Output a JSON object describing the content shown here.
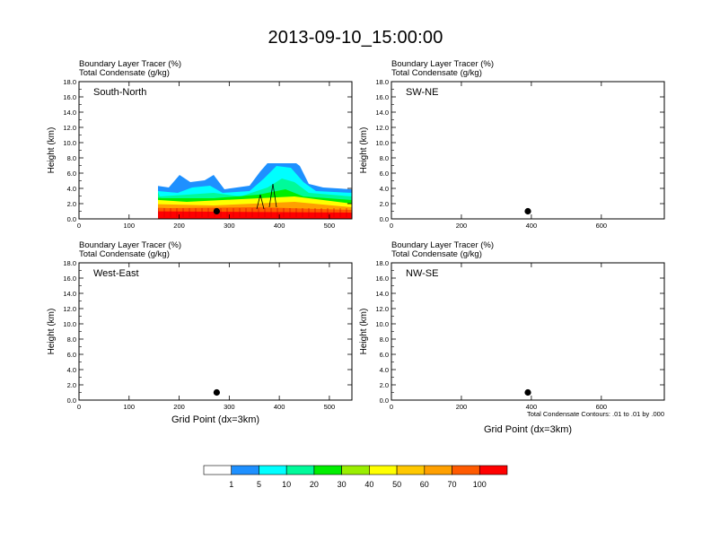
{
  "title": "2013-09-10_15:00:00",
  "panel_line1": "Boundary Layer Tracer    (%)",
  "panel_line2": "Total Condensate    (g/kg)",
  "ylabel": "Height (km)",
  "xlabel": "Grid Point (dx=3km)",
  "contour_note": "Total Condensate Contours: .01 to .01 by .000",
  "y_ticks": [
    "0.0",
    "2.0",
    "4.0",
    "6.0",
    "8.0",
    "10.0",
    "12.0",
    "14.0",
    "16.0",
    "18.0"
  ],
  "colorbar": {
    "labels": [
      "1",
      "5",
      "10",
      "20",
      "30",
      "40",
      "50",
      "60",
      "70",
      "100"
    ],
    "colors": [
      "#ffffff",
      "#1e90ff",
      "#00ffff",
      "#00fa9a",
      "#00ee00",
      "#9aee00",
      "#ffff00",
      "#ffc800",
      "#ffa000",
      "#ff5a00",
      "#ff0000"
    ]
  },
  "chart_data": [
    {
      "type": "heatmap",
      "panel_label": "South-North",
      "xlim": [
        0,
        545
      ],
      "ylim": [
        0,
        18
      ],
      "x_ticks": [
        0,
        100,
        200,
        300,
        400,
        500
      ],
      "marker": {
        "x": 275,
        "y": 1.0
      }
    },
    {
      "type": "heatmap",
      "panel_label": "SW-NE",
      "xlim": [
        0,
        780
      ],
      "ylim": [
        0,
        18
      ],
      "x_ticks": [
        0,
        200,
        400,
        600
      ],
      "marker": {
        "x": 390,
        "y": 1.0
      }
    },
    {
      "type": "heatmap",
      "panel_label": "West-East",
      "xlim": [
        0,
        545
      ],
      "ylim": [
        0,
        18
      ],
      "x_ticks": [
        0,
        100,
        200,
        300,
        400,
        500
      ],
      "marker": {
        "x": 275,
        "y": 1.0
      }
    },
    {
      "type": "heatmap",
      "panel_label": "NW-SE",
      "xlim": [
        0,
        780
      ],
      "ylim": [
        0,
        18
      ],
      "x_ticks": [
        0,
        200,
        400,
        600
      ],
      "marker": {
        "x": 390,
        "y": 1.0
      }
    }
  ]
}
